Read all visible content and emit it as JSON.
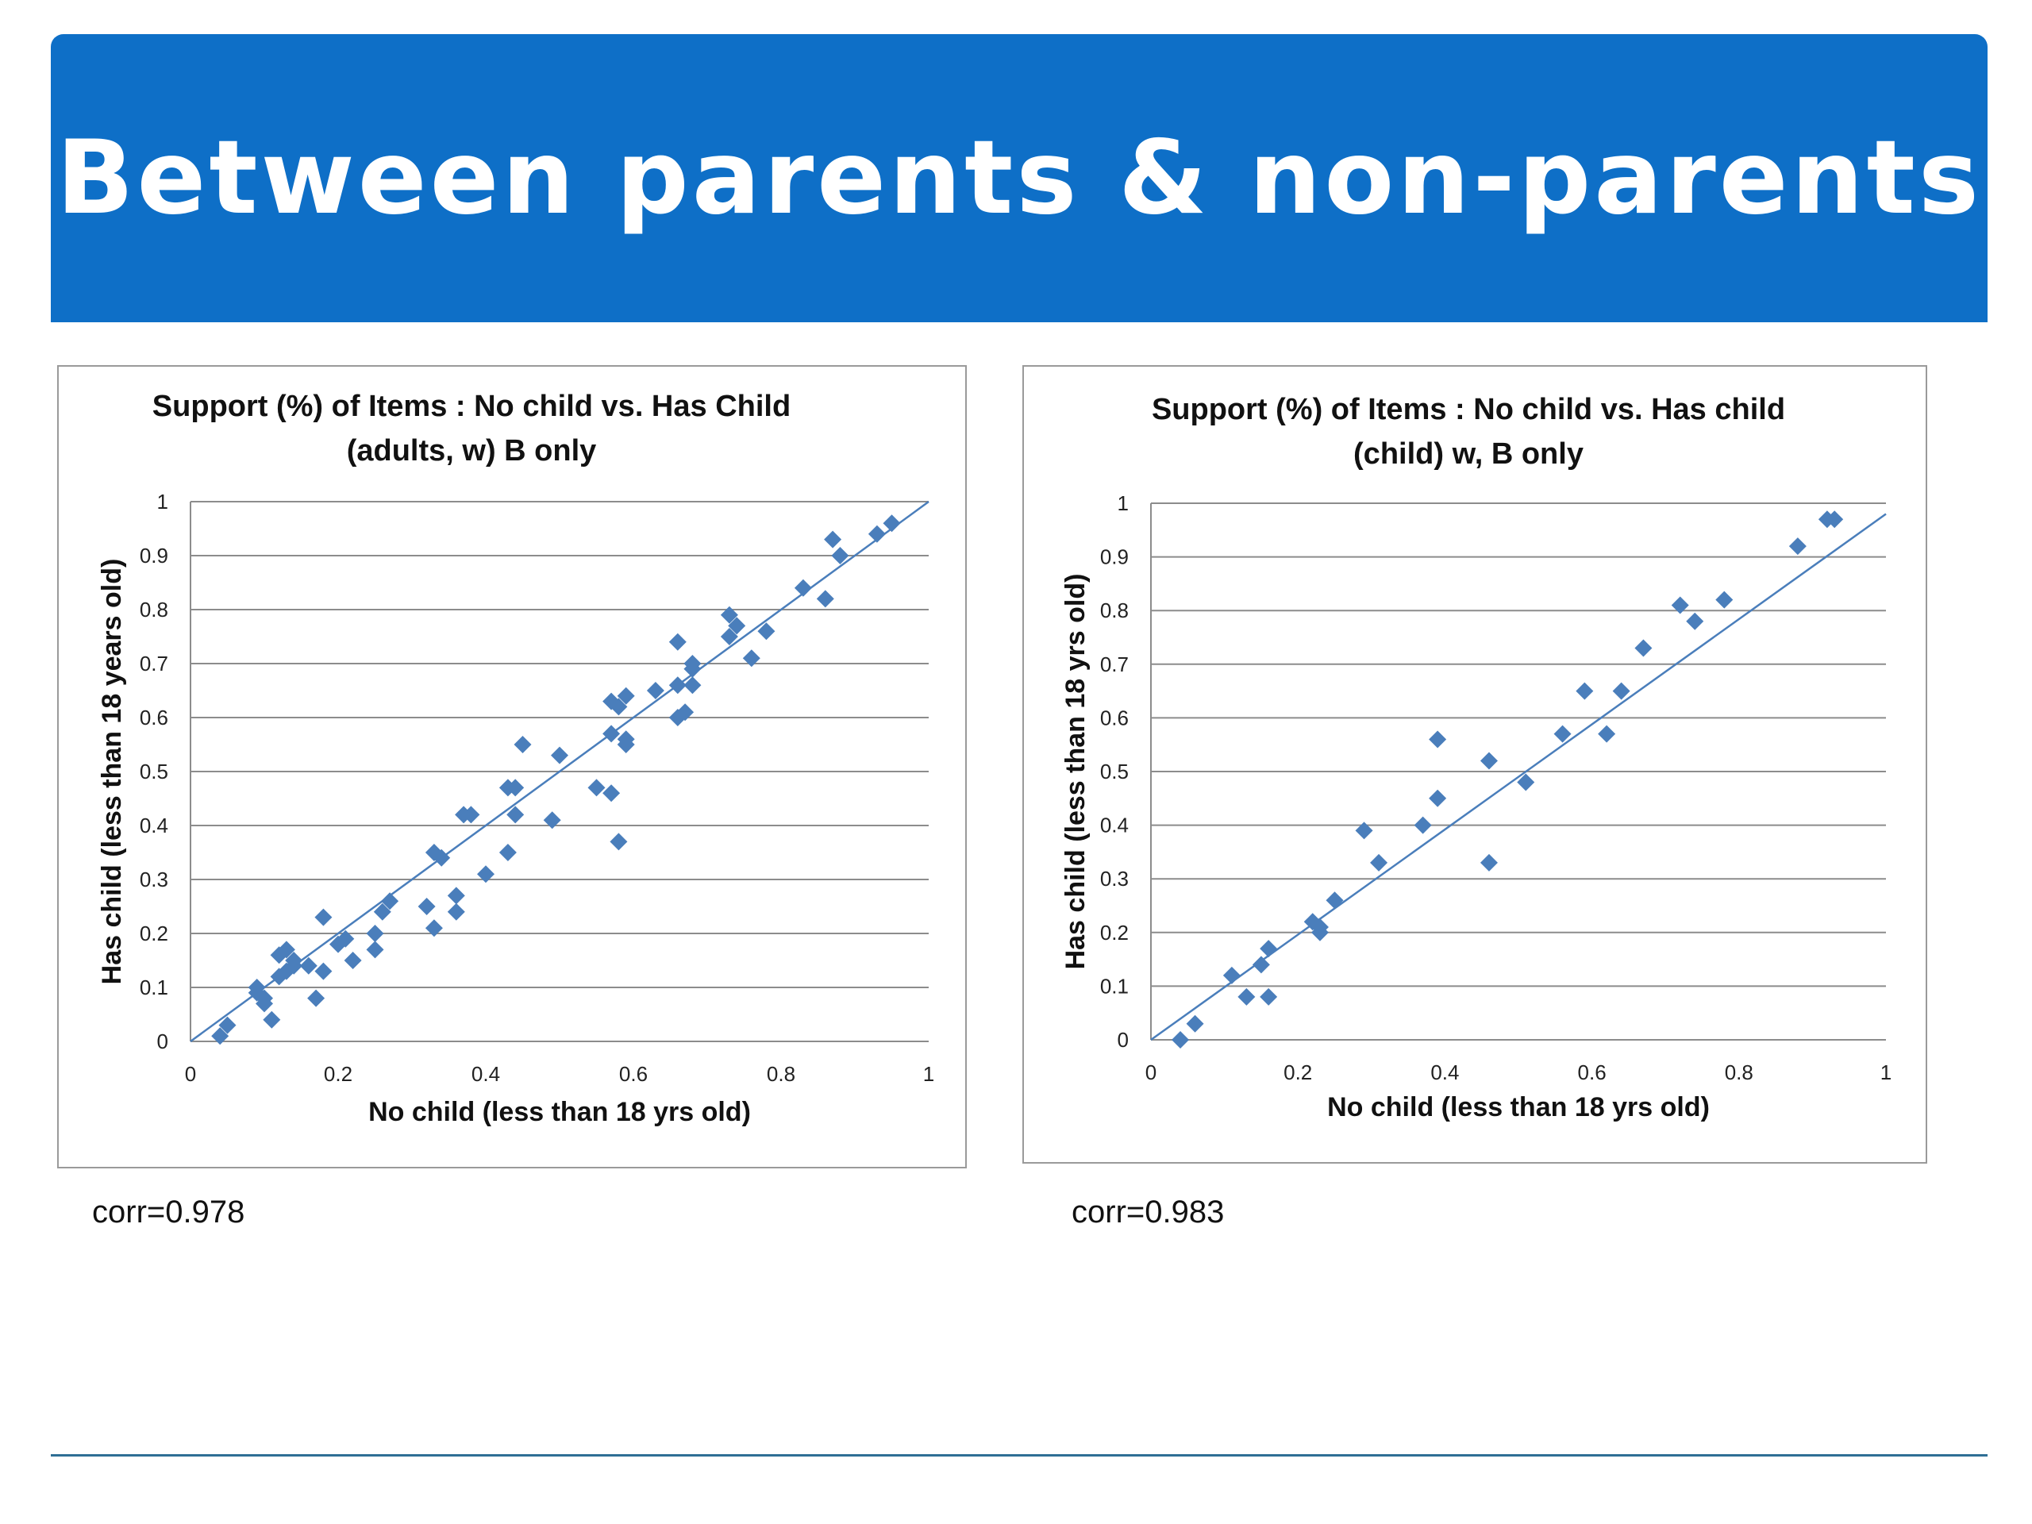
{
  "slide": {
    "title": "Between parents & non-parents"
  },
  "colors": {
    "banner": "#0e6fc7",
    "marker": "#4a7ebb",
    "trendline": "#4a7ebb",
    "grid": "#8c8c8c",
    "footer_line": "#2f6f95"
  },
  "charts": [
    {
      "corr_label": "corr=0.978"
    },
    {
      "corr_label": "corr=0.983"
    }
  ],
  "chart_data": [
    {
      "type": "scatter",
      "title": "Support (%) of Items : No child vs.  Has Child (adults, w) B only",
      "title_lines": [
        "Support (%) of Items : No child vs.  Has Child",
        "(adults, w) B only"
      ],
      "xlabel": "No child (less than 18 yrs old)",
      "ylabel": "Has child (less than 18 years old)",
      "xlim": [
        0,
        1
      ],
      "ylim": [
        0,
        1
      ],
      "xticks": [
        "0",
        "0.2",
        "0.4",
        "0.6",
        "0.8",
        "1"
      ],
      "yticks": [
        "0",
        "0.1",
        "0.2",
        "0.3",
        "0.4",
        "0.5",
        "0.6",
        "0.7",
        "0.8",
        "0.9",
        "1"
      ],
      "grid": "horizontal",
      "trendline": [
        [
          0,
          0
        ],
        [
          1,
          1
        ]
      ],
      "marker": "diamond",
      "points": [
        [
          0.04,
          0.01
        ],
        [
          0.05,
          0.03
        ],
        [
          0.09,
          0.1
        ],
        [
          0.09,
          0.09
        ],
        [
          0.1,
          0.08
        ],
        [
          0.1,
          0.07
        ],
        [
          0.11,
          0.04
        ],
        [
          0.12,
          0.12
        ],
        [
          0.12,
          0.16
        ],
        [
          0.13,
          0.17
        ],
        [
          0.13,
          0.13
        ],
        [
          0.14,
          0.15
        ],
        [
          0.14,
          0.14
        ],
        [
          0.16,
          0.14
        ],
        [
          0.17,
          0.08
        ],
        [
          0.18,
          0.13
        ],
        [
          0.18,
          0.23
        ],
        [
          0.2,
          0.18
        ],
        [
          0.21,
          0.19
        ],
        [
          0.22,
          0.15
        ],
        [
          0.25,
          0.17
        ],
        [
          0.25,
          0.2
        ],
        [
          0.26,
          0.24
        ],
        [
          0.27,
          0.26
        ],
        [
          0.32,
          0.25
        ],
        [
          0.33,
          0.21
        ],
        [
          0.33,
          0.35
        ],
        [
          0.34,
          0.34
        ],
        [
          0.36,
          0.24
        ],
        [
          0.36,
          0.27
        ],
        [
          0.37,
          0.42
        ],
        [
          0.38,
          0.42
        ],
        [
          0.4,
          0.31
        ],
        [
          0.43,
          0.35
        ],
        [
          0.43,
          0.47
        ],
        [
          0.44,
          0.47
        ],
        [
          0.44,
          0.42
        ],
        [
          0.45,
          0.55
        ],
        [
          0.49,
          0.41
        ],
        [
          0.5,
          0.53
        ],
        [
          0.55,
          0.47
        ],
        [
          0.57,
          0.46
        ],
        [
          0.57,
          0.57
        ],
        [
          0.57,
          0.63
        ],
        [
          0.58,
          0.62
        ],
        [
          0.58,
          0.37
        ],
        [
          0.59,
          0.55
        ],
        [
          0.59,
          0.64
        ],
        [
          0.59,
          0.56
        ],
        [
          0.63,
          0.65
        ],
        [
          0.66,
          0.66
        ],
        [
          0.66,
          0.74
        ],
        [
          0.66,
          0.6
        ],
        [
          0.67,
          0.61
        ],
        [
          0.68,
          0.66
        ],
        [
          0.68,
          0.69
        ],
        [
          0.68,
          0.7
        ],
        [
          0.73,
          0.79
        ],
        [
          0.73,
          0.75
        ],
        [
          0.74,
          0.77
        ],
        [
          0.76,
          0.71
        ],
        [
          0.78,
          0.76
        ],
        [
          0.83,
          0.84
        ],
        [
          0.86,
          0.82
        ],
        [
          0.87,
          0.93
        ],
        [
          0.88,
          0.9
        ],
        [
          0.93,
          0.94
        ],
        [
          0.95,
          0.96
        ]
      ]
    },
    {
      "type": "scatter",
      "title": "Support (%) of Items : No child vs. Has child (child) w, B only",
      "title_lines": [
        "Support (%) of Items : No child vs. Has child",
        "(child) w, B only"
      ],
      "xlabel": "No child (less than 18 yrs old)",
      "ylabel": "Has child (less than 18 yrs old)",
      "xlim": [
        0,
        1
      ],
      "ylim": [
        0,
        1
      ],
      "xticks": [
        "0",
        "0.2",
        "0.4",
        "0.6",
        "0.8",
        "1"
      ],
      "yticks": [
        "0",
        "0.1",
        "0.2",
        "0.3",
        "0.4",
        "0.5",
        "0.6",
        "0.7",
        "0.8",
        "0.9",
        "1"
      ],
      "grid": "horizontal",
      "trendline": [
        [
          0,
          0
        ],
        [
          1,
          0.98
        ]
      ],
      "marker": "diamond",
      "points": [
        [
          0.04,
          0.0
        ],
        [
          0.06,
          0.03
        ],
        [
          0.11,
          0.12
        ],
        [
          0.13,
          0.08
        ],
        [
          0.15,
          0.14
        ],
        [
          0.16,
          0.17
        ],
        [
          0.16,
          0.08
        ],
        [
          0.22,
          0.22
        ],
        [
          0.23,
          0.2
        ],
        [
          0.23,
          0.21
        ],
        [
          0.25,
          0.26
        ],
        [
          0.29,
          0.39
        ],
        [
          0.31,
          0.33
        ],
        [
          0.37,
          0.4
        ],
        [
          0.39,
          0.56
        ],
        [
          0.39,
          0.45
        ],
        [
          0.46,
          0.52
        ],
        [
          0.46,
          0.33
        ],
        [
          0.51,
          0.48
        ],
        [
          0.56,
          0.57
        ],
        [
          0.59,
          0.65
        ],
        [
          0.62,
          0.57
        ],
        [
          0.64,
          0.65
        ],
        [
          0.67,
          0.73
        ],
        [
          0.72,
          0.81
        ],
        [
          0.74,
          0.78
        ],
        [
          0.78,
          0.82
        ],
        [
          0.88,
          0.92
        ],
        [
          0.92,
          0.97
        ],
        [
          0.93,
          0.97
        ]
      ]
    }
  ]
}
